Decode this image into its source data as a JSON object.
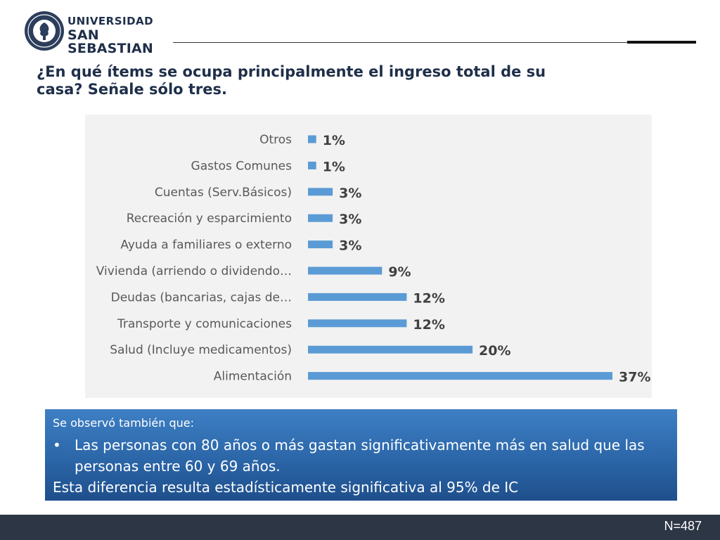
{
  "header": {
    "logo_line1": "UNIVERSIDAD",
    "logo_line2": "SAN SEBASTIAN",
    "seal_text_top": "VERITAS",
    "seal_text_bottom": "EMPRENDER"
  },
  "title": "¿En qué ítems se ocupa principalmente el ingreso total de su casa? Señale sólo tres.",
  "chart_data": {
    "type": "bar",
    "orientation": "horizontal",
    "categories": [
      "Otros",
      "Gastos Comunes",
      "Cuentas (Serv.Básicos)",
      "Recreación y esparcimiento",
      "Ayuda a familiares o externo",
      "Vivienda (arriendo o dividendo…",
      "Deudas (bancarias, cajas de…",
      "Transporte y comunicaciones",
      "Salud (Incluye medicamentos)",
      "Alimentación"
    ],
    "values": [
      1,
      1,
      3,
      3,
      3,
      9,
      12,
      12,
      20,
      37
    ],
    "labels": [
      "1%",
      "1%",
      "3%",
      "3%",
      "3%",
      "9%",
      "12%",
      "12%",
      "20%",
      "37%"
    ],
    "unit": "%",
    "xlim": [
      0,
      37
    ],
    "grid": false,
    "bar_color": "#5b9bd5",
    "background": "#f2f2f2"
  },
  "note": {
    "intro": "Se observó también que:",
    "bullet": "Las personas con 80 años o más gastan significativamente más en salud que las personas entre 60 y 69 años.",
    "conclusion": "Esta diferencia resulta estadísticamente significativa al 95% de IC"
  },
  "footer": {
    "n_label": "N=487"
  }
}
